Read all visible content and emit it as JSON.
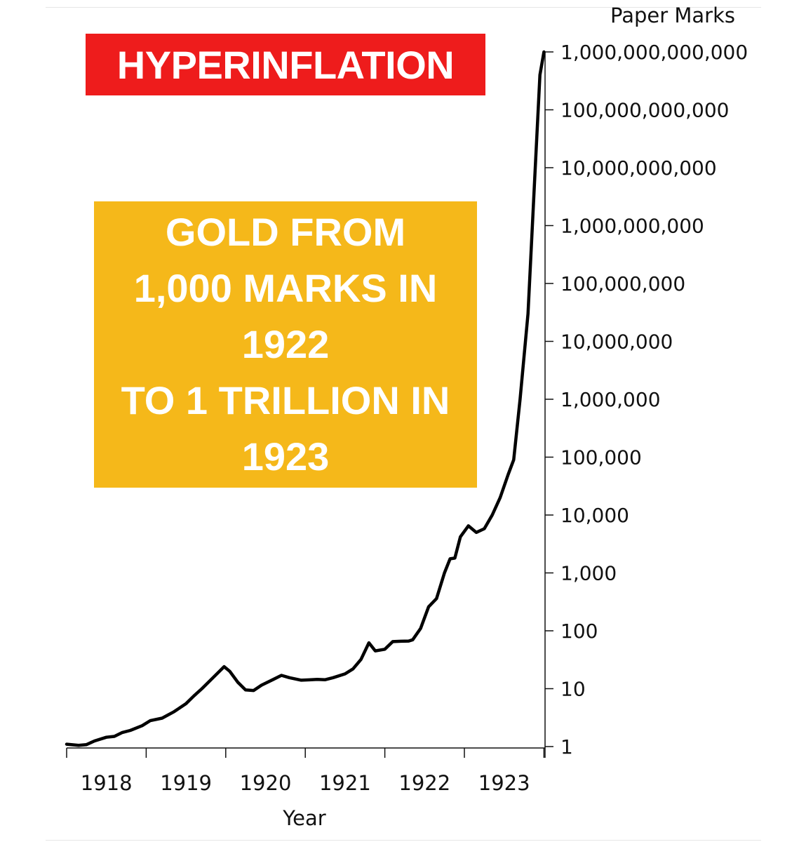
{
  "headline": "HYPERINFLATION",
  "callout": {
    "lines": [
      "GOLD FROM",
      "1,000 MARKS IN",
      "1922",
      "TO 1 TRILLION IN",
      "1923"
    ]
  },
  "colors": {
    "headline_bg": "#ee1c1c",
    "callout_bg": "#f5b81a",
    "line": "#000000"
  },
  "chart_data": {
    "type": "line",
    "title": "",
    "xlabel": "Year",
    "ylabel": "Paper Marks",
    "y_scale": "log10",
    "ylim": [
      1,
      1000000000000
    ],
    "xlim": [
      1918.0,
      1924.0
    ],
    "x_ticks": [
      1918,
      1919,
      1920,
      1921,
      1922,
      1923
    ],
    "y_ticks": [
      {
        "value": 1,
        "label": "1"
      },
      {
        "value": 10,
        "label": "10"
      },
      {
        "value": 100,
        "label": "100"
      },
      {
        "value": 1000,
        "label": "1,000"
      },
      {
        "value": 10000,
        "label": "10,000"
      },
      {
        "value": 100000,
        "label": "100,000"
      },
      {
        "value": 1000000,
        "label": "1,000,000"
      },
      {
        "value": 10000000,
        "label": "10,000,000"
      },
      {
        "value": 100000000,
        "label": "100,000,000"
      },
      {
        "value": 1000000000,
        "label": "1,000,000,000"
      },
      {
        "value": 10000000000,
        "label": "10,000,000,000"
      },
      {
        "value": 100000000000,
        "label": "100,000,000,000"
      },
      {
        "value": 1000000000000,
        "label": "1,000,000,000,000"
      }
    ],
    "grid": false,
    "series": [
      {
        "points": [
          [
            1918.0,
            1.1
          ],
          [
            1918.15,
            1.05
          ],
          [
            1918.25,
            1.08
          ],
          [
            1918.35,
            1.25
          ],
          [
            1918.5,
            1.45
          ],
          [
            1918.6,
            1.5
          ],
          [
            1918.7,
            1.75
          ],
          [
            1918.8,
            1.9
          ],
          [
            1918.95,
            2.3
          ],
          [
            1919.05,
            2.8
          ],
          [
            1919.2,
            3.1
          ],
          [
            1919.35,
            4.0
          ],
          [
            1919.5,
            5.5
          ],
          [
            1919.6,
            7.5
          ],
          [
            1919.7,
            10
          ],
          [
            1919.85,
            16
          ],
          [
            1919.98,
            24
          ],
          [
            1920.05,
            20
          ],
          [
            1920.15,
            13
          ],
          [
            1920.25,
            9.5
          ],
          [
            1920.35,
            9.3
          ],
          [
            1920.45,
            11.5
          ],
          [
            1920.6,
            14.5
          ],
          [
            1920.7,
            17
          ],
          [
            1920.8,
            15.5
          ],
          [
            1920.95,
            14
          ],
          [
            1921.05,
            14.2
          ],
          [
            1921.15,
            14.5
          ],
          [
            1921.25,
            14.3
          ],
          [
            1921.35,
            15.5
          ],
          [
            1921.5,
            18
          ],
          [
            1921.6,
            22
          ],
          [
            1921.7,
            32
          ],
          [
            1921.8,
            62
          ],
          [
            1921.88,
            45
          ],
          [
            1922.0,
            48
          ],
          [
            1922.1,
            65
          ],
          [
            1922.2,
            66
          ],
          [
            1922.3,
            66.5
          ],
          [
            1922.35,
            70
          ],
          [
            1922.45,
            110
          ],
          [
            1922.55,
            260
          ],
          [
            1922.65,
            360
          ],
          [
            1922.75,
            1000
          ],
          [
            1922.82,
            1750
          ],
          [
            1922.88,
            1800
          ],
          [
            1922.95,
            4200
          ],
          [
            1923.05,
            6500
          ],
          [
            1923.15,
            5000
          ],
          [
            1923.25,
            5800
          ],
          [
            1923.35,
            10000
          ],
          [
            1923.45,
            20000
          ],
          [
            1923.55,
            50000
          ],
          [
            1923.62,
            90000
          ],
          [
            1923.7,
            1000000
          ],
          [
            1923.8,
            30000000
          ],
          [
            1923.88,
            5000000000
          ],
          [
            1923.95,
            400000000000
          ],
          [
            1924.0,
            1000000000000
          ]
        ]
      }
    ]
  }
}
